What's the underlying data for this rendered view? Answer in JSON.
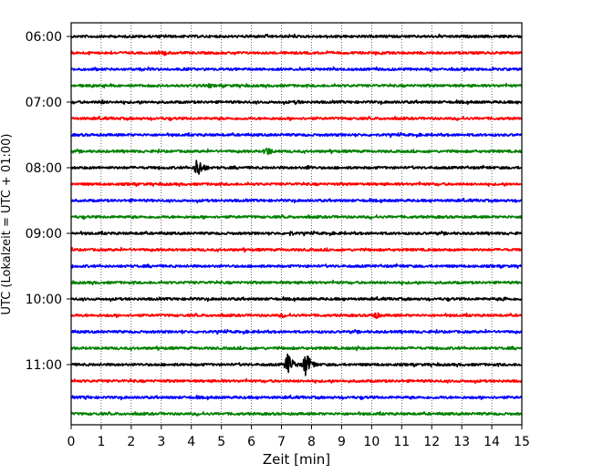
{
  "chart_data": {
    "type": "line",
    "title": "",
    "xlabel": "Zeit  [min]",
    "ylabel": "UTC (Lokalzeit = UTC + 01:00)",
    "xlim": [
      0,
      15
    ],
    "x_ticks": [
      "0",
      "1",
      "2",
      "3",
      "4",
      "5",
      "6",
      "7",
      "8",
      "9",
      "10",
      "11",
      "12",
      "13",
      "14",
      "15"
    ],
    "y_tick_labels": [
      "06:00",
      "07:00",
      "08:00",
      "09:00",
      "10:00",
      "11:00"
    ],
    "grid": "vertical dotted",
    "trace_interval_minutes": 15,
    "trace_colors": [
      "#000000",
      "#ff0000",
      "#0000ff",
      "#008000"
    ],
    "traces": [
      {
        "start": "06:00",
        "events": [
          {
            "t": 9.0,
            "amp": 2.0
          }
        ]
      },
      {
        "start": "06:15",
        "events": [
          {
            "t": 3.1,
            "amp": 3.0
          }
        ]
      },
      {
        "start": "06:30",
        "events": [
          {
            "t": 0.8,
            "amp": 2.0
          }
        ]
      },
      {
        "start": "06:45",
        "events": [
          {
            "t": 4.6,
            "amp": 2.5
          }
        ]
      },
      {
        "start": "07:00",
        "events": [
          {
            "t": 1.0,
            "amp": 3.0
          },
          {
            "t": 7.5,
            "amp": 3.0
          }
        ]
      },
      {
        "start": "07:15",
        "events": []
      },
      {
        "start": "07:30",
        "events": []
      },
      {
        "start": "07:45",
        "events": [
          {
            "t": 6.5,
            "amp": 6.0
          }
        ]
      },
      {
        "start": "08:00",
        "events": [
          {
            "t": 4.2,
            "amp": 12.0
          },
          {
            "t": 7.9,
            "amp": 3.0
          }
        ]
      },
      {
        "start": "08:15",
        "events": []
      },
      {
        "start": "08:30",
        "events": [
          {
            "t": 2.0,
            "amp": 2.0
          }
        ]
      },
      {
        "start": "08:45",
        "events": []
      },
      {
        "start": "09:00",
        "events": [
          {
            "t": 7.3,
            "amp": 3.0
          },
          {
            "t": 2.3,
            "amp": 2.0
          }
        ]
      },
      {
        "start": "09:15",
        "events": []
      },
      {
        "start": "09:30",
        "events": []
      },
      {
        "start": "09:45",
        "events": []
      },
      {
        "start": "10:00",
        "events": [
          {
            "t": 4.0,
            "amp": 2.0
          },
          {
            "t": 14.4,
            "amp": 3.0
          }
        ]
      },
      {
        "start": "10:15",
        "events": [
          {
            "t": 10.1,
            "amp": 5.0
          },
          {
            "t": 7.0,
            "amp": 3.0
          }
        ]
      },
      {
        "start": "10:30",
        "events": [
          {
            "t": 3.7,
            "amp": 2.0
          }
        ]
      },
      {
        "start": "10:45",
        "events": [
          {
            "t": 9.5,
            "amp": 3.0
          }
        ]
      },
      {
        "start": "11:00",
        "events": [
          {
            "t": 7.2,
            "amp": 13.0
          },
          {
            "t": 7.8,
            "amp": 14.0
          }
        ]
      },
      {
        "start": "11:15",
        "events": [
          {
            "t": 5.0,
            "amp": 2.0
          }
        ]
      },
      {
        "start": "11:30",
        "events": [
          {
            "t": 0.5,
            "amp": 2.5
          },
          {
            "t": 4.2,
            "amp": 2.0
          }
        ]
      },
      {
        "start": "11:45",
        "events": []
      }
    ]
  }
}
